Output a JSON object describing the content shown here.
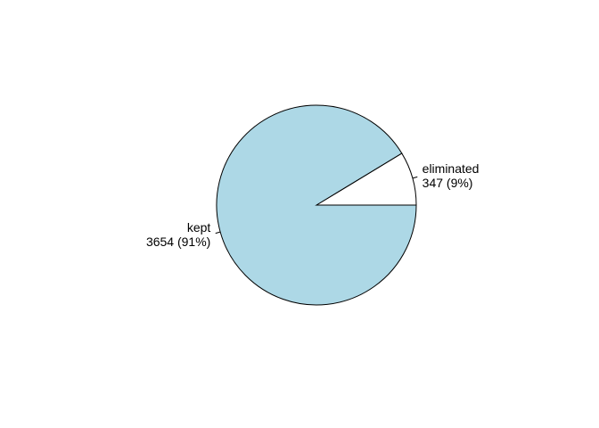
{
  "chart_data": {
    "type": "pie",
    "labels": [
      "eliminated",
      "kept"
    ],
    "values": [
      347,
      3654
    ],
    "value_labels": [
      "347 (9%)",
      "3654 (91%)"
    ],
    "colors": [
      "#ffffff",
      "#add8e6"
    ],
    "start_angle_deg": 0,
    "direction": "counterclockwise"
  }
}
